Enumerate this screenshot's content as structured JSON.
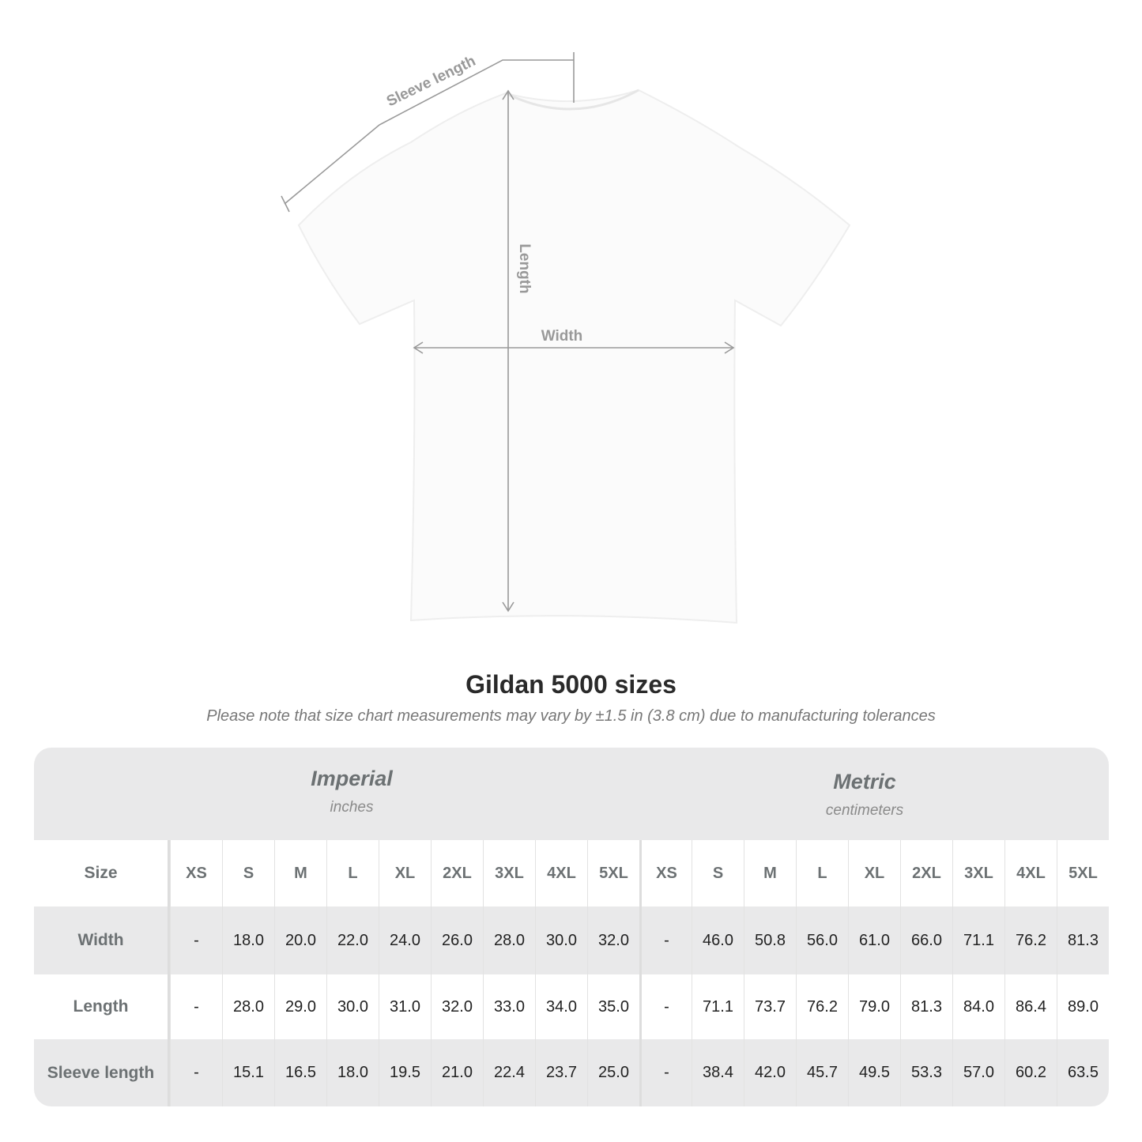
{
  "diagram": {
    "sleeve_label": "Sleeve length",
    "length_label": "Length",
    "width_label": "Width"
  },
  "title": "Gildan 5000 sizes",
  "note": "Please note that size chart measurements may vary by ±1.5 in (3.8 cm) due to manufacturing tolerances",
  "imperial": {
    "name": "Imperial",
    "unit": "inches"
  },
  "metric": {
    "name": "Metric",
    "unit": "centimeters"
  },
  "table": {
    "size_label": "Size",
    "sizes": [
      "XS",
      "S",
      "M",
      "L",
      "XL",
      "2XL",
      "3XL",
      "4XL",
      "5XL"
    ],
    "rows": [
      {
        "label": "Width",
        "imperial": [
          "-",
          "18.0",
          "20.0",
          "22.0",
          "24.0",
          "26.0",
          "28.0",
          "30.0",
          "32.0"
        ],
        "metric": [
          "-",
          "46.0",
          "50.8",
          "56.0",
          "61.0",
          "66.0",
          "71.1",
          "76.2",
          "81.3"
        ]
      },
      {
        "label": "Length",
        "imperial": [
          "-",
          "28.0",
          "29.0",
          "30.0",
          "31.0",
          "32.0",
          "33.0",
          "34.0",
          "35.0"
        ],
        "metric": [
          "-",
          "71.1",
          "73.7",
          "76.2",
          "79.0",
          "81.3",
          "84.0",
          "86.4",
          "89.0"
        ]
      },
      {
        "label": "Sleeve length",
        "imperial": [
          "-",
          "15.1",
          "16.5",
          "18.0",
          "19.5",
          "21.0",
          "22.4",
          "23.7",
          "25.0"
        ],
        "metric": [
          "-",
          "38.4",
          "42.0",
          "45.7",
          "49.5",
          "53.3",
          "57.0",
          "60.2",
          "63.5"
        ]
      }
    ]
  },
  "colors": {
    "header_bg": "#e9e9ea",
    "label_text": "#6c7173",
    "measure_line": "#999999"
  }
}
